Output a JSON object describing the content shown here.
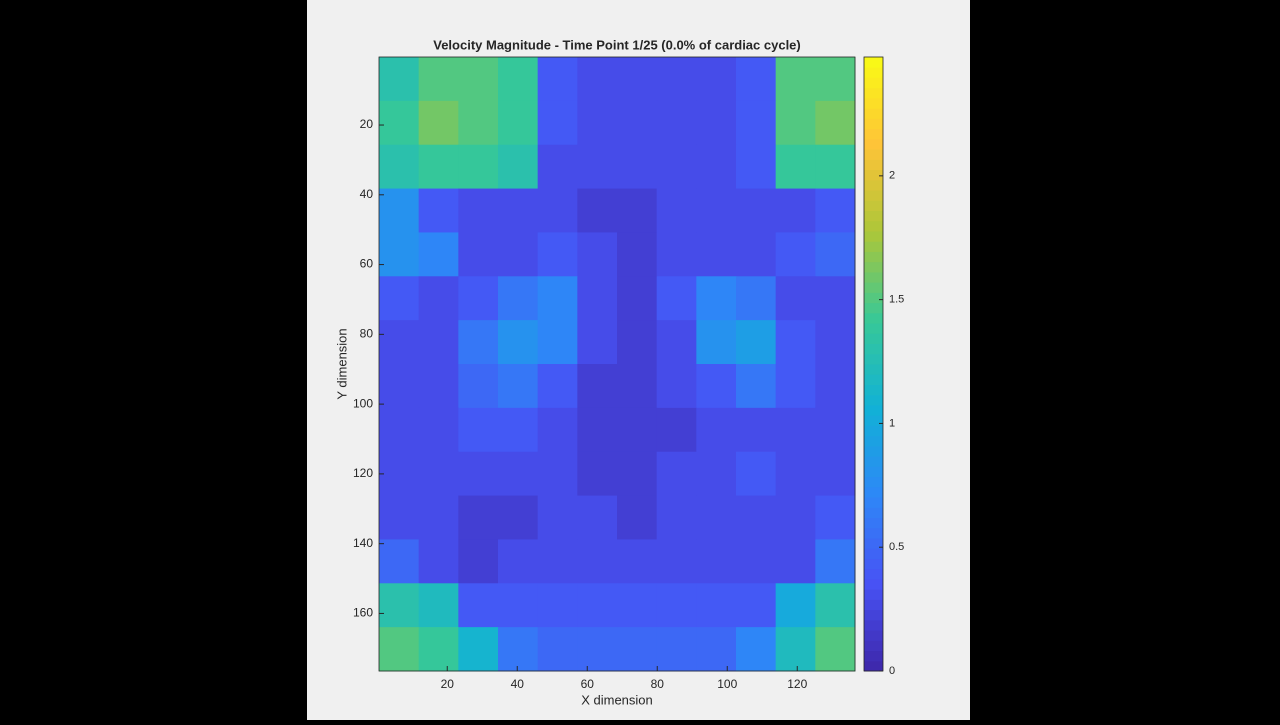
{
  "chart_data": {
    "type": "heatmap",
    "title": "Velocity Magnitude - Time Point 1/25 (0.0% of cardiac cycle)",
    "x_label": "X dimension",
    "y_label": "Y dimension",
    "xlim": [
      0.5,
      136.5
    ],
    "ylim": [
      0.5,
      176.5
    ],
    "xticks": [
      20,
      40,
      60,
      80,
      100,
      120
    ],
    "yticks": [
      20,
      40,
      60,
      80,
      100,
      120,
      140,
      160
    ],
    "y_reversed": true,
    "colormap": "parula",
    "clim": [
      0,
      2.48
    ],
    "cticks": [
      0,
      0.5,
      1,
      1.5,
      2
    ],
    "z": [
      [
        1.3,
        1.5,
        1.5,
        1.4,
        0.4,
        0.3,
        0.3,
        0.3,
        0.3,
        0.4,
        1.5,
        1.5
      ],
      [
        1.4,
        1.6,
        1.5,
        1.4,
        0.4,
        0.3,
        0.3,
        0.3,
        0.3,
        0.4,
        1.5,
        1.6
      ],
      [
        1.3,
        1.4,
        1.4,
        1.3,
        0.3,
        0.3,
        0.3,
        0.3,
        0.3,
        0.4,
        1.4,
        1.4
      ],
      [
        0.8,
        0.4,
        0.3,
        0.3,
        0.3,
        0.2,
        0.2,
        0.3,
        0.3,
        0.3,
        0.3,
        0.4
      ],
      [
        0.8,
        0.7,
        0.3,
        0.3,
        0.4,
        0.3,
        0.2,
        0.3,
        0.3,
        0.3,
        0.4,
        0.5
      ],
      [
        0.4,
        0.3,
        0.4,
        0.6,
        0.7,
        0.3,
        0.2,
        0.4,
        0.7,
        0.6,
        0.3,
        0.3
      ],
      [
        0.3,
        0.3,
        0.6,
        0.8,
        0.7,
        0.3,
        0.2,
        0.3,
        0.8,
        0.9,
        0.4,
        0.3
      ],
      [
        0.3,
        0.3,
        0.5,
        0.6,
        0.4,
        0.2,
        0.2,
        0.3,
        0.4,
        0.6,
        0.4,
        0.3
      ],
      [
        0.3,
        0.3,
        0.4,
        0.4,
        0.3,
        0.2,
        0.2,
        0.2,
        0.3,
        0.3,
        0.3,
        0.3
      ],
      [
        0.3,
        0.3,
        0.3,
        0.3,
        0.3,
        0.2,
        0.2,
        0.3,
        0.3,
        0.4,
        0.3,
        0.3
      ],
      [
        0.3,
        0.3,
        0.2,
        0.2,
        0.3,
        0.3,
        0.2,
        0.3,
        0.3,
        0.3,
        0.3,
        0.4
      ],
      [
        0.5,
        0.3,
        0.2,
        0.3,
        0.3,
        0.3,
        0.3,
        0.3,
        0.3,
        0.3,
        0.3,
        0.6
      ],
      [
        1.3,
        1.2,
        0.4,
        0.4,
        0.4,
        0.4,
        0.4,
        0.4,
        0.4,
        0.4,
        1.0,
        1.3
      ],
      [
        1.5,
        1.4,
        1.1,
        0.6,
        0.5,
        0.5,
        0.5,
        0.5,
        0.5,
        0.7,
        1.2,
        1.5
      ]
    ]
  }
}
